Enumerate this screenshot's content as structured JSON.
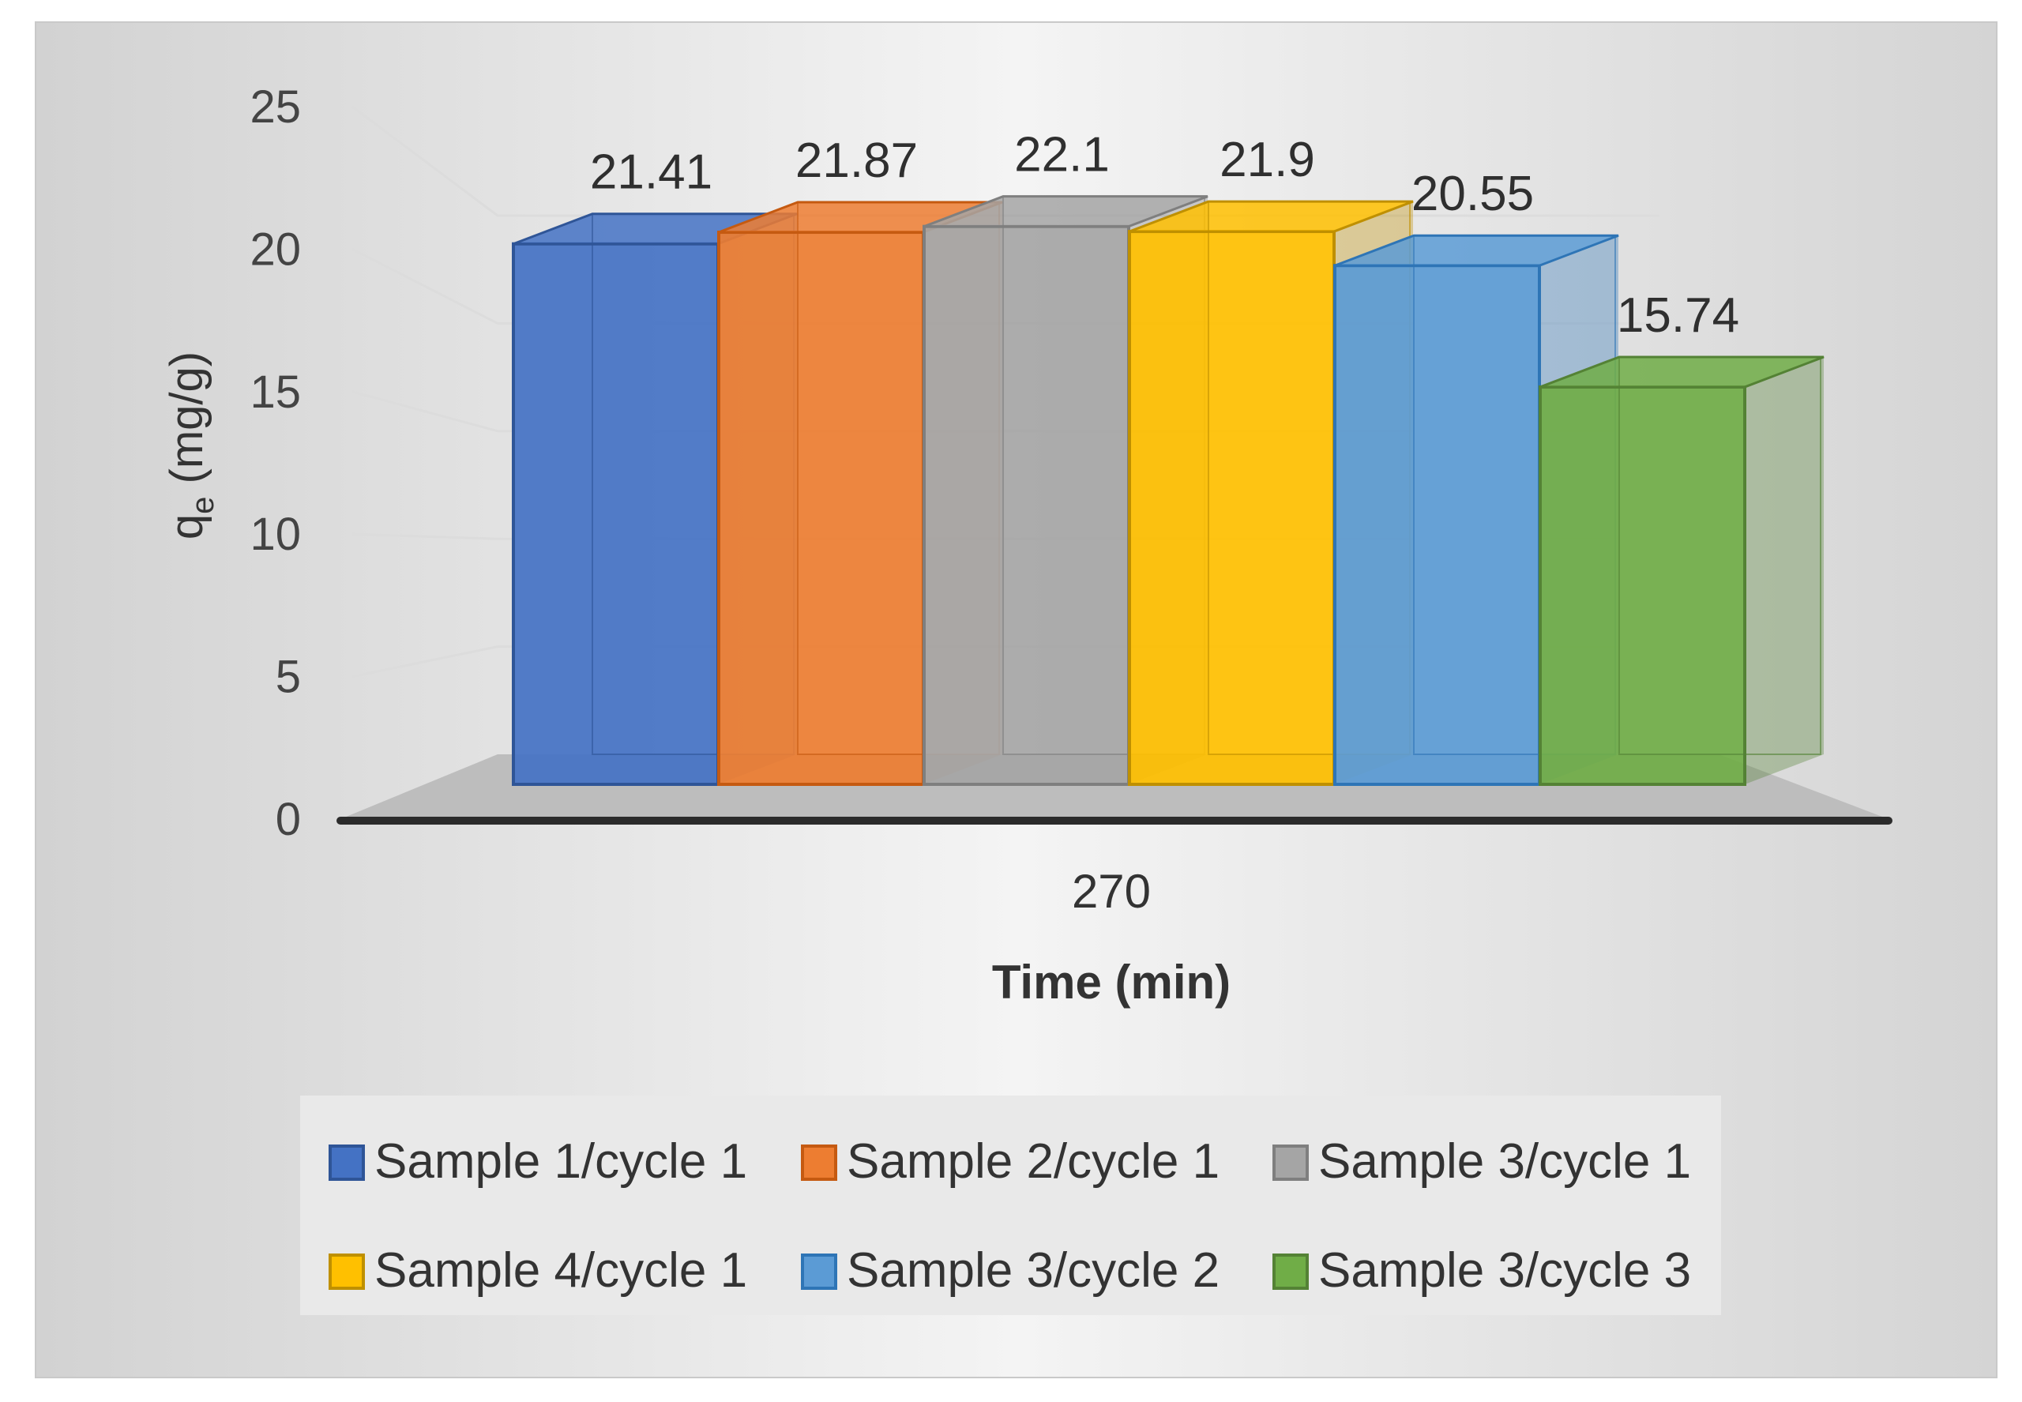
{
  "chart_data": {
    "type": "bar",
    "style": "3d-clustered-column",
    "categories": [
      "270"
    ],
    "series": [
      {
        "name": "Sample 1/cycle 1",
        "values": [
          21.41
        ],
        "color": "#4472C4",
        "edge": "#2F5597"
      },
      {
        "name": "Sample 2/cycle 1",
        "values": [
          21.87
        ],
        "color": "#ED7D31",
        "edge": "#C55A11"
      },
      {
        "name": "Sample 3/cycle 1",
        "values": [
          22.1
        ],
        "color": "#A5A5A5",
        "edge": "#7F7F7F"
      },
      {
        "name": "Sample 4/cycle 1",
        "values": [
          21.9
        ],
        "color": "#FFC000",
        "edge": "#BF9000"
      },
      {
        "name": "Sample 3/cycle 2",
        "values": [
          20.55
        ],
        "color": "#5B9BD5",
        "edge": "#2E75B6"
      },
      {
        "name": "Sample 3/cycle 3",
        "values": [
          15.74
        ],
        "color": "#70AD47",
        "edge": "#548235"
      }
    ],
    "data_labels": [
      "21.41",
      "21.87",
      "22.1",
      "21.9",
      "20.55",
      "15.74"
    ],
    "y_ticks": [
      "0",
      "5",
      "10",
      "15",
      "20",
      "25"
    ],
    "ylim": [
      0,
      25
    ],
    "xlabel": "Time (min)",
    "ylabel_main": "q",
    "ylabel_sub": "e",
    "ylabel_unit": " (mg/g)",
    "grid": true,
    "legend_position": "bottom"
  }
}
